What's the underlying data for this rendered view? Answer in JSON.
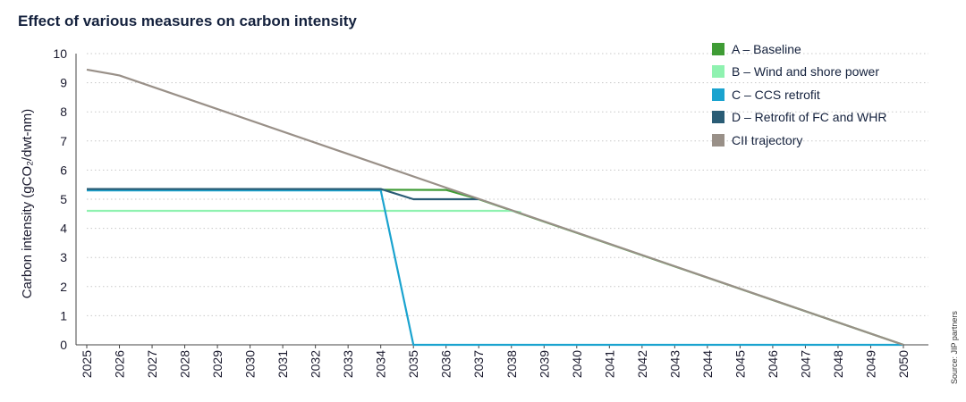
{
  "chart_data": {
    "type": "line",
    "title": "Effect of various measures on carbon intensity",
    "ylabel": "Carbon intensity (gCO₂/dwt-nm)",
    "xlabel": "",
    "x": [
      2025,
      2026,
      2027,
      2028,
      2029,
      2030,
      2031,
      2032,
      2033,
      2034,
      2035,
      2036,
      2037,
      2038,
      2039,
      2040,
      2041,
      2042,
      2043,
      2044,
      2045,
      2046,
      2047,
      2048,
      2049,
      2050
    ],
    "ylim": [
      0,
      10
    ],
    "yticks": [
      0,
      1,
      2,
      3,
      4,
      5,
      6,
      7,
      8,
      9,
      10
    ],
    "grid": "horizontal dotted",
    "legend_position": "top-right",
    "series": [
      {
        "name": "A – Baseline",
        "color": "#3f9c35",
        "points": [
          [
            2025,
            5.35
          ],
          [
            2036,
            5.32
          ],
          [
            2037,
            5.0
          ],
          [
            2050,
            0.0
          ]
        ]
      },
      {
        "name": "B – Wind and shore power",
        "color": "#8ff2b0",
        "points": [
          [
            2025,
            4.6
          ],
          [
            2038,
            4.6
          ],
          [
            2038.3,
            4.55
          ]
        ]
      },
      {
        "name": "C – CCS retrofit",
        "color": "#1aa3cf",
        "points": [
          [
            2025,
            5.3
          ],
          [
            2034,
            5.3
          ],
          [
            2035,
            0.0
          ],
          [
            2050,
            0.0
          ]
        ]
      },
      {
        "name": "D – Retrofit of FC and WHR",
        "color": "#2a5c75",
        "points": [
          [
            2025,
            5.35
          ],
          [
            2034,
            5.35
          ],
          [
            2035,
            5.0
          ],
          [
            2037,
            5.0
          ]
        ]
      },
      {
        "name": "CII trajectory",
        "color": "#999088",
        "points": [
          [
            2025,
            9.45
          ],
          [
            2026,
            9.25
          ],
          [
            2050,
            0.0
          ]
        ]
      }
    ],
    "source": "Source: JIP partners"
  }
}
